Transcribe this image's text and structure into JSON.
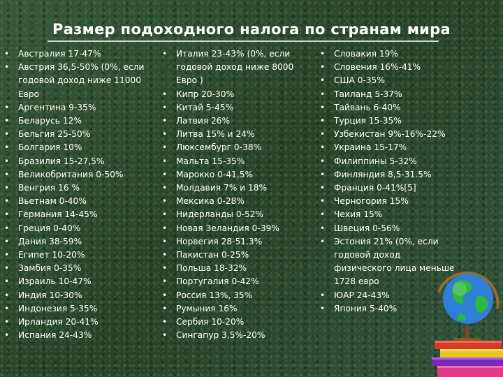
{
  "title": "Размер подоходного налога по странам мира",
  "columns": [
    {
      "items": [
        "Австралия 17-47%",
        "Австрия 36,5-50% (0%, если\nгодовой доход ниже 11000\nЕвро",
        "Аргентина 9-35%",
        "Беларусь 12%",
        "Бельгия 25-50%",
        "Болгария 10%",
        "Бразилия 15-27,5%",
        "Великобритания 0-50%",
        "Венгрия 16 %",
        "Вьетнам 0-40%",
        "Германия 14-45%",
        "Греция 0-40%",
        "Дания 38-59%",
        "Египет 10-20%",
        "Замбия 0-35%",
        "Израиль 10-47%",
        "Индия 10-30%",
        "Индонезия 5-35%",
        "Ирландия 20-41%",
        "Испания 24-43%"
      ]
    },
    {
      "items": [
        "Италия 23-43% (0%, если\nгодовой доход ниже 8000\nЕвро )",
        "Кипр 20-30%",
        "Китай 5-45%",
        "Латвия 26%",
        "Литва 15% и 24%",
        "Люксембург 0-38%",
        "Мальта 15-35%",
        "Марокко 0-41,5%",
        "Молдавия 7% и 18%",
        "Мексика 0-28%",
        "Нидерланды 0-52%",
        "Новая Зеландия 0-39%",
        "Норвегия 28-51.3%",
        "Пакистан 0-25%",
        "Польша 18-32%",
        "Португалия 0-42%",
        "Россия 13%, 35%",
        "Румыния 16%",
        "Сербия 10-20%",
        "Сингапур 3,5%-20%"
      ]
    },
    {
      "items": [
        "Словакия 19%",
        "Словения 16%-41%",
        "США 0-35%",
        "Таиланд 5-37%",
        "Тайвань 6-40%",
        "Турция 15-35%",
        "Узбекистан 9%-16%-22%",
        "Украина 15-17%",
        "Филиппины 5-32%",
        "Финляндия 8,5-31.5%",
        "Франция 0-41%[5]",
        "Черногория 15%",
        "Чехия 15%",
        "Швеция 0-56%",
        "Эстония 21% (0%, если\nгодовой доход\nфизического лица меньше\n1728 евро",
        "ЮАР 24-43%",
        "Япония 5-40%"
      ]
    }
  ],
  "bullet_char": "•"
}
